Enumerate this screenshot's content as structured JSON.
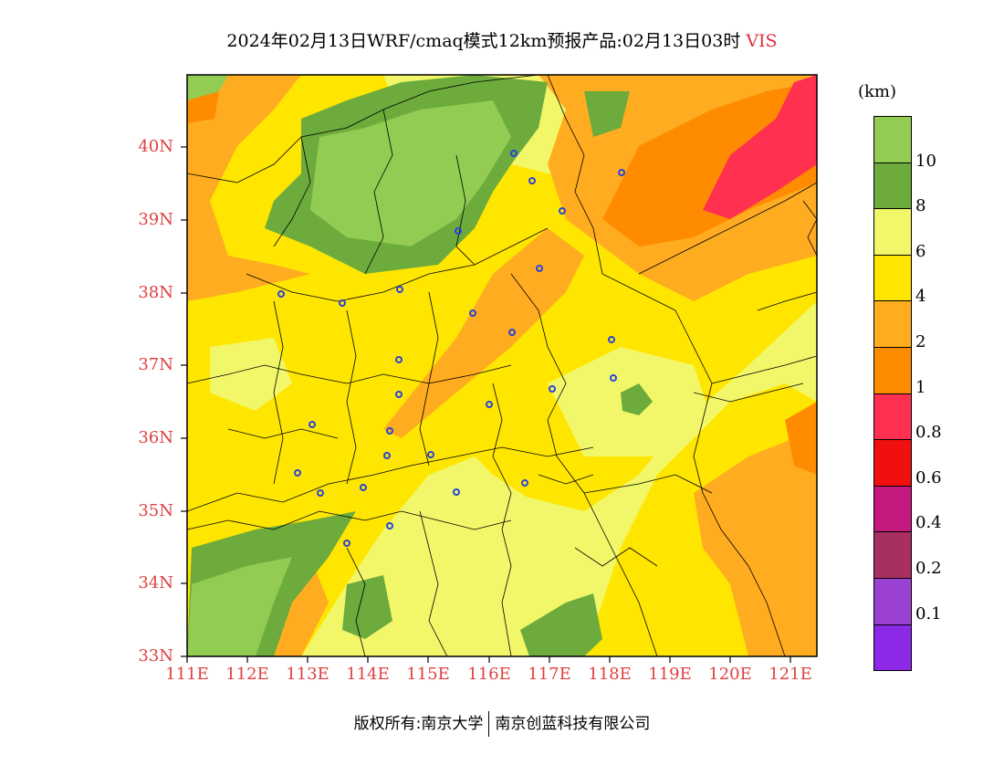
{
  "title": {
    "main": "2024年02月13日WRF/cmaq模式12km预报产品:02月13日03时",
    "variable": "VIS"
  },
  "legend": {
    "unit": "(km)",
    "colors": [
      "#8c28e6",
      "#9a40d2",
      "#a83060",
      "#c41a80",
      "#f01010",
      "#ff3050",
      "#ff8c00",
      "#ffac20",
      "#ffe600",
      "#f2f76a",
      "#6cab3c",
      "#92cc52"
    ],
    "labels": [
      "0.1",
      "0.2",
      "0.4",
      "0.6",
      "0.8",
      "1",
      "2",
      "4",
      "6",
      "8",
      "10"
    ]
  },
  "axes": {
    "lat_labels": [
      "40N",
      "39N",
      "38N",
      "37N",
      "36N",
      "35N",
      "34N",
      "33N"
    ],
    "lon_labels": [
      "111E",
      "112E",
      "113E",
      "114E",
      "115E",
      "116E",
      "117E",
      "118E",
      "119E",
      "120E",
      "121E"
    ]
  },
  "footer": {
    "left": "版权所有:南京大学",
    "right": "南京创蓝科技有限公司"
  }
}
